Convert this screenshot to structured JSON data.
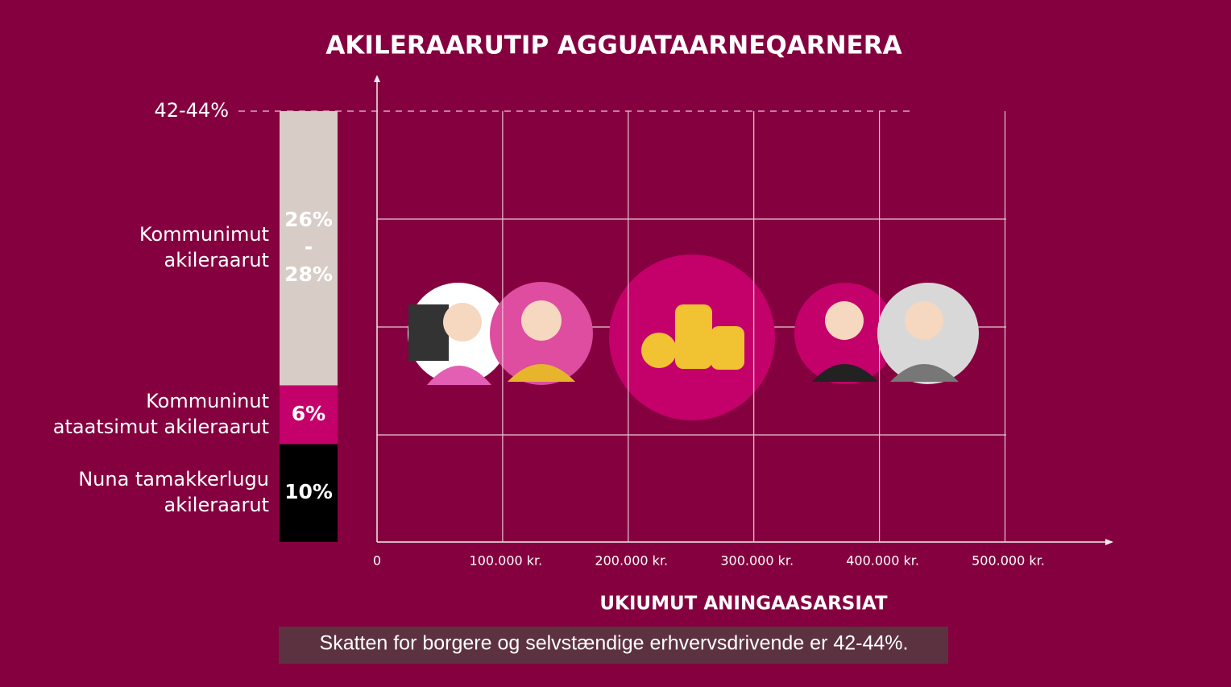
{
  "chart_data": {
    "type": "tax-infographic",
    "title": "AKILERAARUTIP AGGUATAARNEQARNERA",
    "x_label": "UKIUMUT ANINGAASARSIAT",
    "xlim": [
      0,
      585000
    ],
    "xticks": [
      0,
      {
        "value": 100000,
        "label": "100.000 kr."
      },
      {
        "value": 200000,
        "label": "200.000 kr."
      },
      {
        "value": 300000,
        "label": "300.000 kr."
      },
      {
        "value": 400000,
        "label": "400.000 kr."
      },
      {
        "value": 500000,
        "label": "500.000 kr."
      }
    ],
    "reference": {
      "label": "42-44%",
      "values": [
        42,
        44
      ]
    },
    "bar": {
      "segments": [
        {
          "name_lines": [
            "Nuna tamakkerlugu",
            "akileraarut"
          ],
          "values": [
            10
          ],
          "label_lines": [
            "10%"
          ],
          "color": "#000000",
          "label_color": "#ffffff"
        },
        {
          "name_lines": [
            "Kommuninut",
            "ataatsimut akileraarut"
          ],
          "values": [
            6
          ],
          "label_lines": [
            "6%"
          ],
          "color": "#c4006a",
          "label_color": "#ffffff"
        },
        {
          "name_lines": [
            "Kommunimut",
            "akileraarut"
          ],
          "values": [
            26,
            28
          ],
          "label_lines": [
            "26%",
            "-",
            "28%"
          ],
          "color": "#d8ccc6",
          "label_color": "#1a1a1a"
        }
      ]
    },
    "caption": "Skatten for borgere og selvstændige erhvervsdrivende er 42-44%."
  }
}
